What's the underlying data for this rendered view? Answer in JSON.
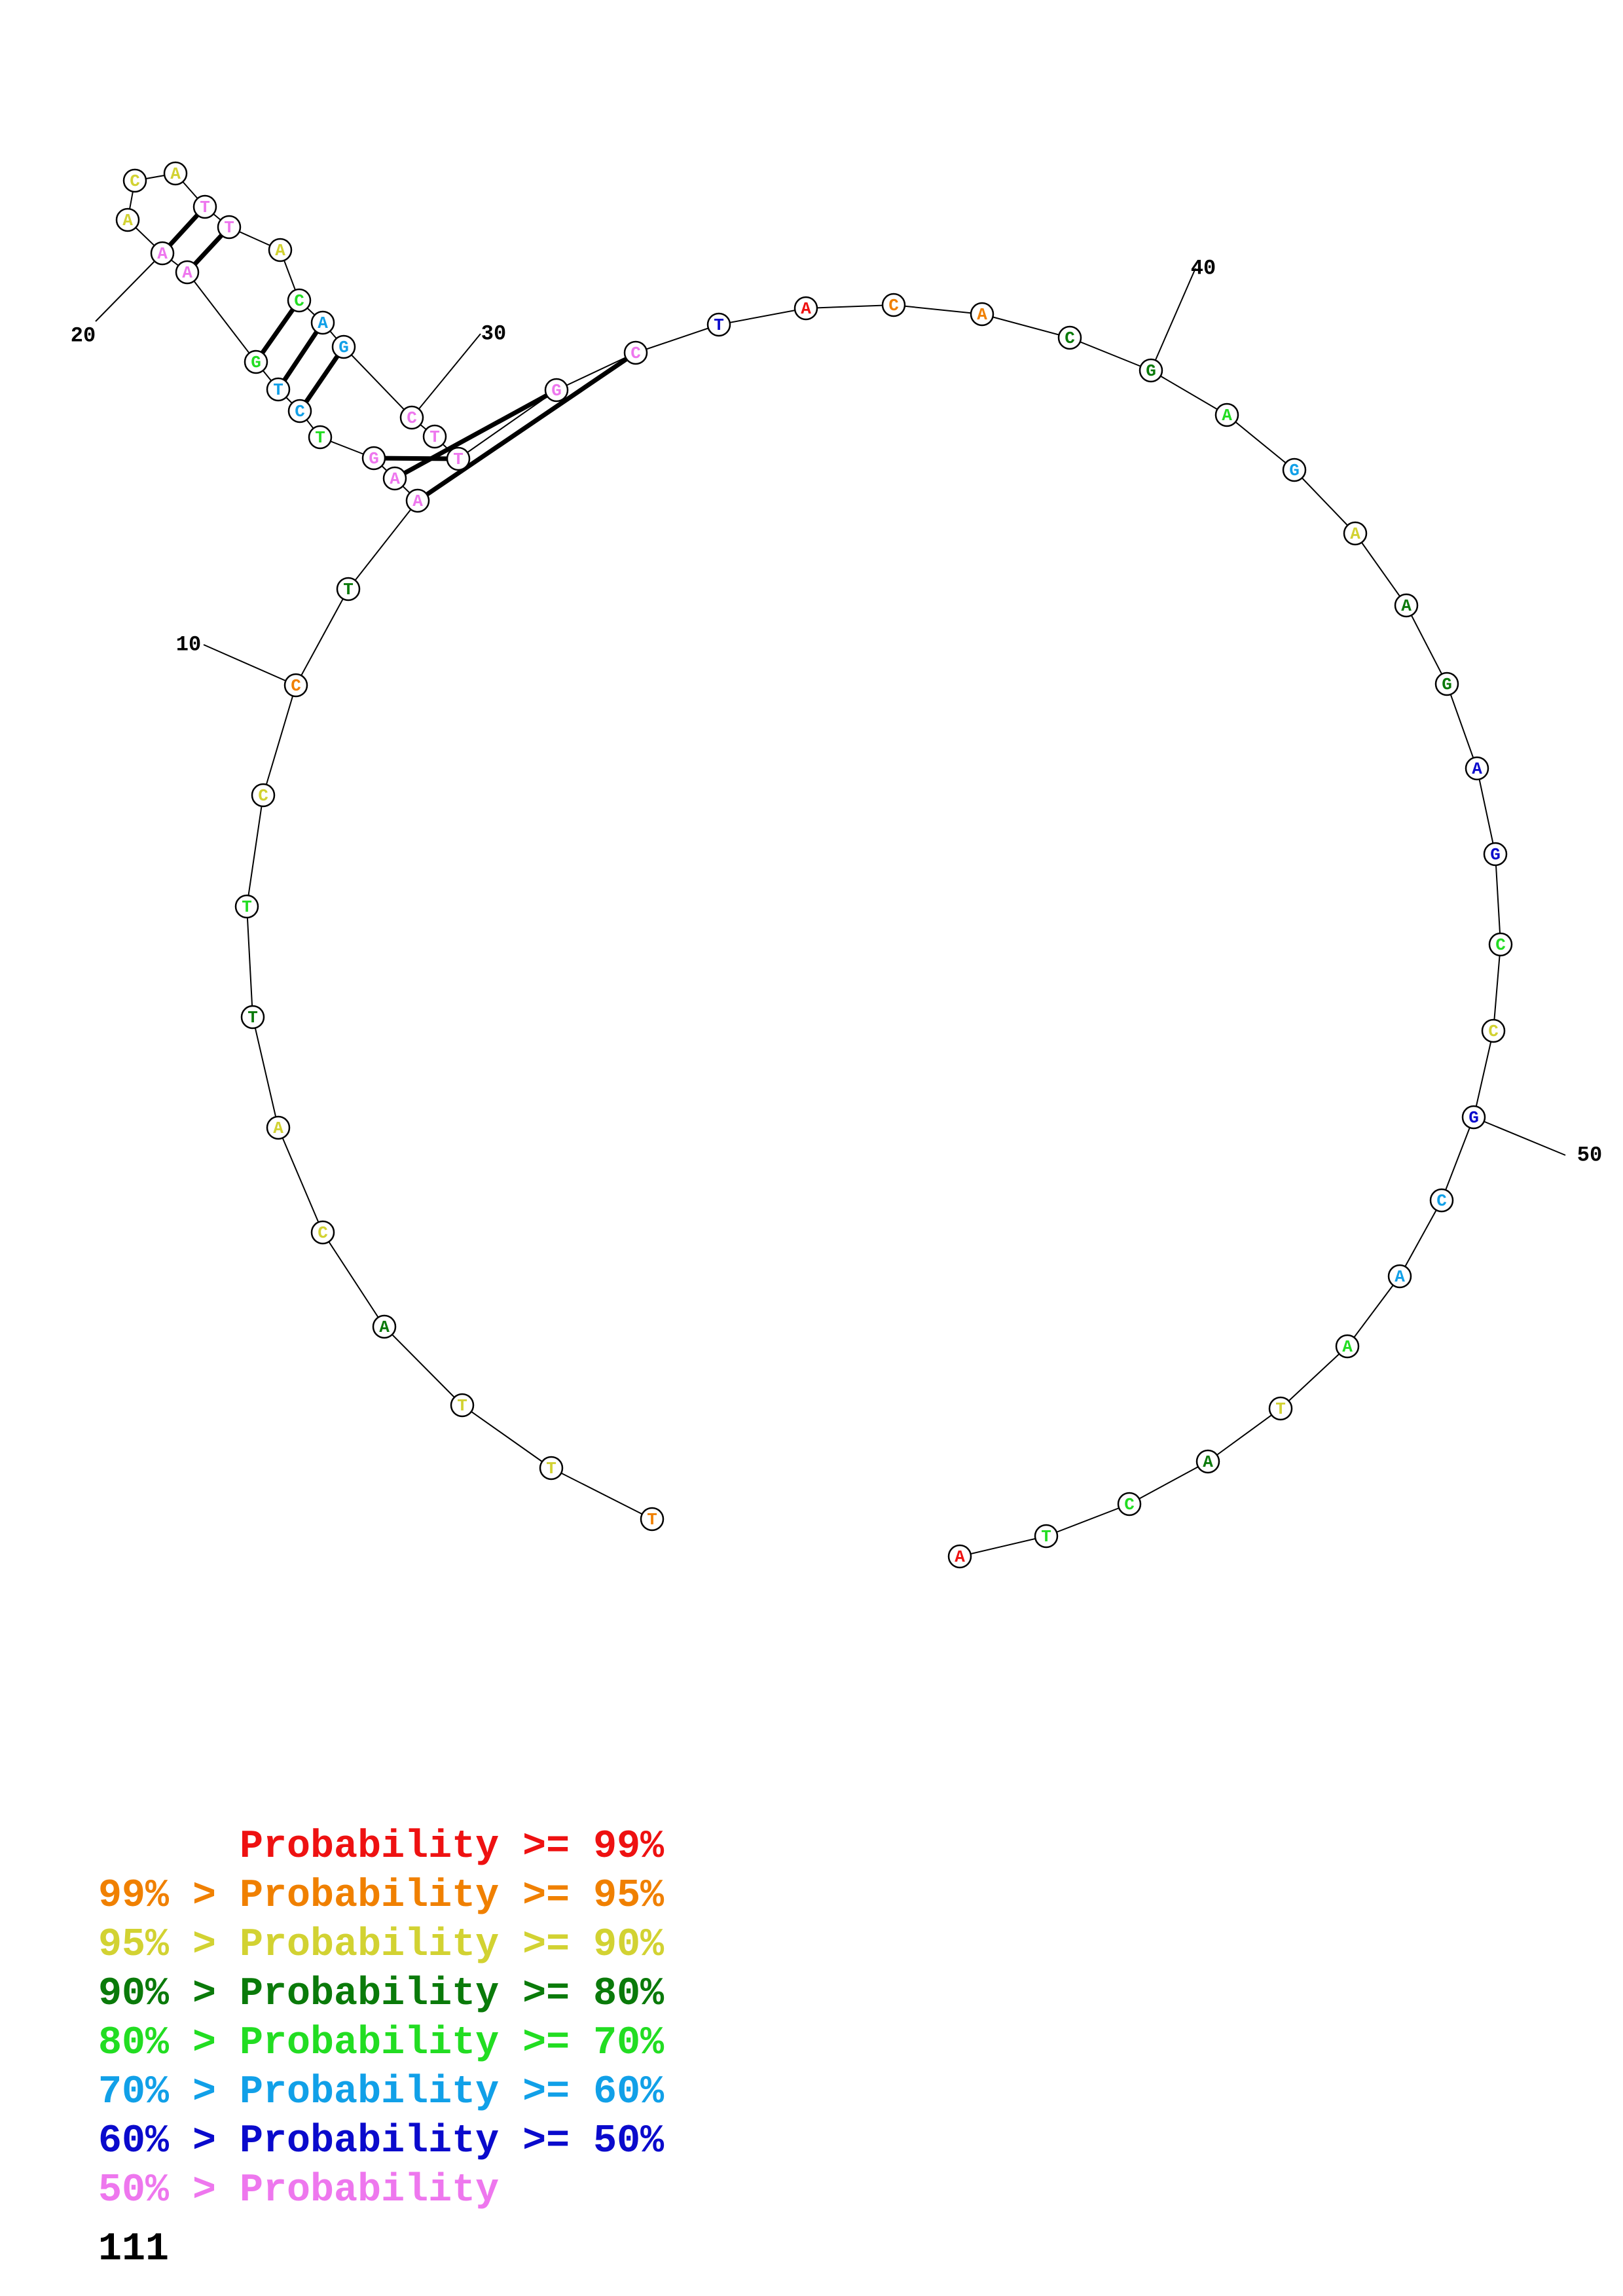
{
  "colors": {
    "p99": "#ee1111",
    "p95": "#f08000",
    "p90": "#d2d232",
    "p80": "#0a7a0a",
    "p70": "#22dd22",
    "p60": "#11a0e8",
    "p50": "#0a0acc",
    "p0": "#ee77ee"
  },
  "sequence": [
    {
      "n": 1,
      "base": "T",
      "prob": "p95"
    },
    {
      "n": 2,
      "base": "T",
      "prob": "p90"
    },
    {
      "n": 3,
      "base": "T",
      "prob": "p90"
    },
    {
      "n": 4,
      "base": "A",
      "prob": "p80"
    },
    {
      "n": 5,
      "base": "C",
      "prob": "p90"
    },
    {
      "n": 6,
      "base": "A",
      "prob": "p90"
    },
    {
      "n": 7,
      "base": "T",
      "prob": "p80"
    },
    {
      "n": 8,
      "base": "T",
      "prob": "p70"
    },
    {
      "n": 9,
      "base": "C",
      "prob": "p90"
    },
    {
      "n": 10,
      "base": "C",
      "prob": "p95"
    },
    {
      "n": 11,
      "base": "T",
      "prob": "p80"
    },
    {
      "n": 12,
      "base": "A",
      "prob": "p0"
    },
    {
      "n": 13,
      "base": "A",
      "prob": "p0"
    },
    {
      "n": 14,
      "base": "G",
      "prob": "p0"
    },
    {
      "n": 15,
      "base": "T",
      "prob": "p70"
    },
    {
      "n": 16,
      "base": "C",
      "prob": "p60"
    },
    {
      "n": 17,
      "base": "T",
      "prob": "p60"
    },
    {
      "n": 18,
      "base": "G",
      "prob": "p70"
    },
    {
      "n": 19,
      "base": "A",
      "prob": "p0"
    },
    {
      "n": 20,
      "base": "A",
      "prob": "p0"
    },
    {
      "n": 21,
      "base": "A",
      "prob": "p90"
    },
    {
      "n": 22,
      "base": "C",
      "prob": "p90"
    },
    {
      "n": 23,
      "base": "A",
      "prob": "p90"
    },
    {
      "n": 24,
      "base": "T",
      "prob": "p0"
    },
    {
      "n": 25,
      "base": "T",
      "prob": "p0"
    },
    {
      "n": 26,
      "base": "A",
      "prob": "p90"
    },
    {
      "n": 27,
      "base": "C",
      "prob": "p70"
    },
    {
      "n": 28,
      "base": "A",
      "prob": "p60"
    },
    {
      "n": 29,
      "base": "G",
      "prob": "p60"
    },
    {
      "n": 30,
      "base": "C",
      "prob": "p0"
    },
    {
      "n": 31,
      "base": "T",
      "prob": "p0"
    },
    {
      "n": 32,
      "base": "T",
      "prob": "p0"
    },
    {
      "n": 33,
      "base": "G",
      "prob": "p0"
    },
    {
      "n": 34,
      "base": "C",
      "prob": "p0"
    },
    {
      "n": 35,
      "base": "T",
      "prob": "p50"
    },
    {
      "n": 36,
      "base": "A",
      "prob": "p99"
    },
    {
      "n": 37,
      "base": "C",
      "prob": "p95"
    },
    {
      "n": 38,
      "base": "A",
      "prob": "p95"
    },
    {
      "n": 39,
      "base": "C",
      "prob": "p80"
    },
    {
      "n": 40,
      "base": "G",
      "prob": "p80"
    },
    {
      "n": 41,
      "base": "A",
      "prob": "p70"
    },
    {
      "n": 42,
      "base": "G",
      "prob": "p60"
    },
    {
      "n": 43,
      "base": "A",
      "prob": "p90"
    },
    {
      "n": 44,
      "base": "A",
      "prob": "p80"
    },
    {
      "n": 45,
      "base": "G",
      "prob": "p80"
    },
    {
      "n": 46,
      "base": "A",
      "prob": "p50"
    },
    {
      "n": 47,
      "base": "G",
      "prob": "p50"
    },
    {
      "n": 48,
      "base": "C",
      "prob": "p70"
    },
    {
      "n": 49,
      "base": "C",
      "prob": "p90"
    },
    {
      "n": 50,
      "base": "G",
      "prob": "p50"
    },
    {
      "n": 51,
      "base": "C",
      "prob": "p60"
    },
    {
      "n": 52,
      "base": "A",
      "prob": "p60"
    },
    {
      "n": 53,
      "base": "A",
      "prob": "p70"
    },
    {
      "n": 54,
      "base": "T",
      "prob": "p90"
    },
    {
      "n": 55,
      "base": "A",
      "prob": "p80"
    },
    {
      "n": 56,
      "base": "C",
      "prob": "p70"
    },
    {
      "n": 57,
      "base": "T",
      "prob": "p70"
    },
    {
      "n": 58,
      "base": "A",
      "prob": "p99"
    }
  ],
  "pairs": [
    [
      12,
      34
    ],
    [
      13,
      33
    ],
    [
      14,
      32
    ],
    [
      16,
      29
    ],
    [
      17,
      28
    ],
    [
      18,
      27
    ],
    [
      19,
      25
    ],
    [
      20,
      24
    ]
  ],
  "tick_labels": [
    {
      "n": 10,
      "label": "10"
    },
    {
      "n": 20,
      "label": "20"
    },
    {
      "n": 30,
      "label": "30"
    },
    {
      "n": 40,
      "label": "40"
    },
    {
      "n": 50,
      "label": "50"
    }
  ],
  "legend": [
    {
      "text": "      Probability >= 99%",
      "prob": "p99"
    },
    {
      "text": "99% > Probability >= 95%",
      "prob": "p95"
    },
    {
      "text": "95% > Probability >= 90%",
      "prob": "p90"
    },
    {
      "text": "90% > Probability >= 80%",
      "prob": "p80"
    },
    {
      "text": "80% > Probability >= 70%",
      "prob": "p70"
    },
    {
      "text": "70% > Probability >= 60%",
      "prob": "p60"
    },
    {
      "text": "60% > Probability >= 50%",
      "prob": "p50"
    },
    {
      "text": "50% > Probability",
      "prob": "p0"
    }
  ],
  "footer": "111"
}
